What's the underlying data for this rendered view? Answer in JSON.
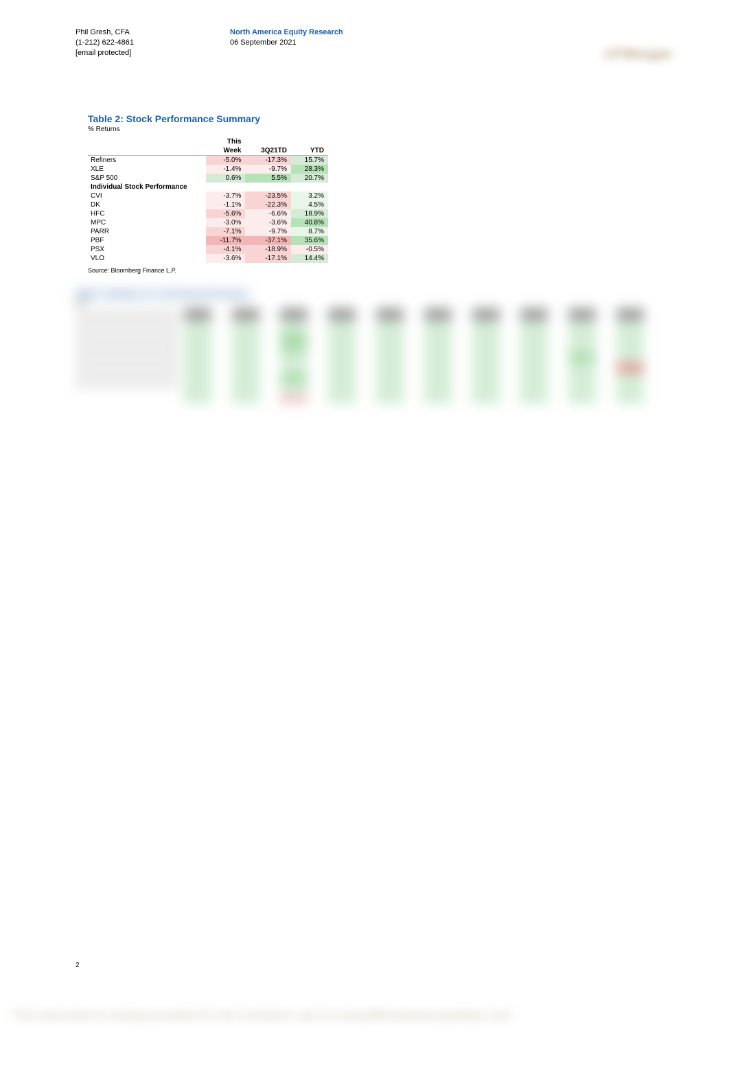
{
  "header": {
    "author_name": "Phil Gresh, CFA",
    "author_phone": "(1-212) 622-4861",
    "author_email": "[email protected]",
    "research_line1": "North America Equity Research",
    "research_line2": "06 September 2021",
    "logo_text": "J.P.Morgan"
  },
  "table2": {
    "title": "Table 2: Stock Performance Summary",
    "subtitle": "% Returns",
    "col_labels": {
      "c1": "This",
      "c1b": "Week",
      "c2": "3Q21TD",
      "c3": "YTD"
    },
    "index_rows": [
      {
        "label": "Refiners",
        "tw": {
          "v": "-5.0%",
          "c": "neg-mid"
        },
        "q": {
          "v": "-17.3%",
          "c": "neg-mid"
        },
        "y": {
          "v": "15.7%",
          "c": "pos-mid"
        }
      },
      {
        "label": "XLE",
        "tw": {
          "v": "-1.4%",
          "c": "neg-light"
        },
        "q": {
          "v": "-9.7%",
          "c": "neg-light"
        },
        "y": {
          "v": "28.3%",
          "c": "pos-dark"
        }
      },
      {
        "label": "S&P 500",
        "tw": {
          "v": "0.6%",
          "c": "pos-mid"
        },
        "q": {
          "v": "5.5%",
          "c": "pos-dark"
        },
        "y": {
          "v": "20.7%",
          "c": "pos-mid"
        }
      }
    ],
    "section_label": "Individual Stock Performance",
    "stock_rows": [
      {
        "label": "CVI",
        "tw": {
          "v": "-3.7%",
          "c": "neg-light"
        },
        "q": {
          "v": "-23.5%",
          "c": "neg-mid"
        },
        "y": {
          "v": "3.2%",
          "c": "pos-light"
        }
      },
      {
        "label": "DK",
        "tw": {
          "v": "-1.1%",
          "c": "neg-light"
        },
        "q": {
          "v": "-22.3%",
          "c": "neg-mid"
        },
        "y": {
          "v": "4.5%",
          "c": "pos-light"
        }
      },
      {
        "label": "HFC",
        "tw": {
          "v": "-5.6%",
          "c": "neg-mid"
        },
        "q": {
          "v": "-6.6%",
          "c": "neg-light"
        },
        "y": {
          "v": "18.9%",
          "c": "pos-mid"
        }
      },
      {
        "label": "MPC",
        "tw": {
          "v": "-3.0%",
          "c": "neg-light"
        },
        "q": {
          "v": "-3.6%",
          "c": "neg-light"
        },
        "y": {
          "v": "40.8%",
          "c": "pos-dark"
        }
      },
      {
        "label": "PARR",
        "tw": {
          "v": "-7.1%",
          "c": "neg-mid"
        },
        "q": {
          "v": "-9.7%",
          "c": "neg-light"
        },
        "y": {
          "v": "8.7%",
          "c": "pos-light"
        }
      },
      {
        "label": "PBF",
        "tw": {
          "v": "-11.7%",
          "c": "neg-dark"
        },
        "q": {
          "v": "-37.1%",
          "c": "neg-dark"
        },
        "y": {
          "v": "35.6%",
          "c": "pos-dark"
        }
      },
      {
        "label": "PSX",
        "tw": {
          "v": "-4.1%",
          "c": "neg-mid"
        },
        "q": {
          "v": "-18.9%",
          "c": "neg-mid"
        },
        "y": {
          "v": "-0.5%",
          "c": "neg-light"
        }
      },
      {
        "label": "VLO",
        "tw": {
          "v": "-3.6%",
          "c": "neg-light"
        },
        "q": {
          "v": "-17.1%",
          "c": "neg-mid"
        },
        "y": {
          "v": "14.4%",
          "c": "pos-mid"
        }
      }
    ],
    "source": "Source: Bloomberg Finance L.P."
  },
  "page_number": "2",
  "footer_text": "This document is being provided for the exclusive use of ruixue@hushentouyanbao.com"
}
